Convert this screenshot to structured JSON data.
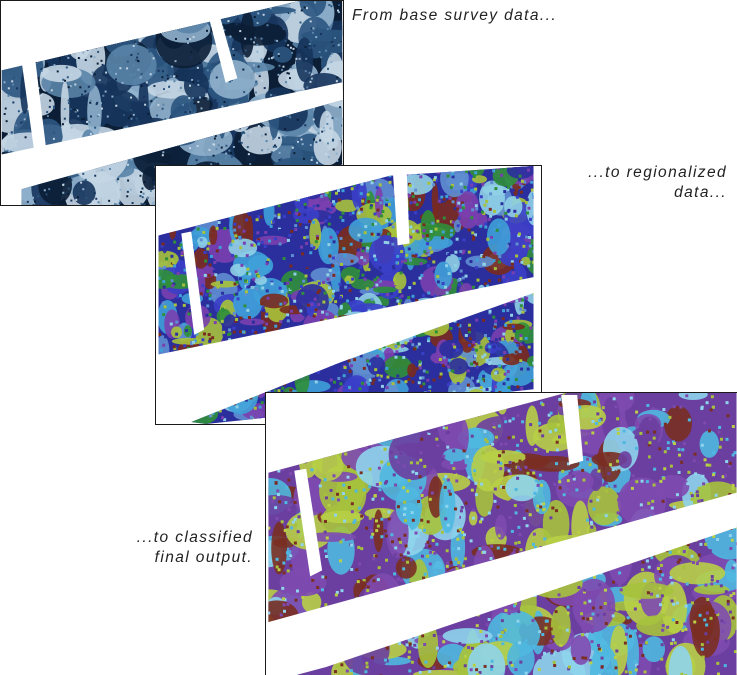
{
  "captions": {
    "survey": "From base survey data...",
    "regionalized_line1": "...to regionalized",
    "regionalized_line2": "data...",
    "classified_line1": "...to classified",
    "classified_line2": "final output."
  },
  "palettes": {
    "survey": [
      "#0b1e36",
      "#16345c",
      "#2b557f",
      "#5a84a8",
      "#8fb0cc",
      "#c4d6e4"
    ],
    "regionalized": [
      "#2b2f9e",
      "#3a3fc8",
      "#7a3fae",
      "#2f8f3a",
      "#3fa0d8",
      "#8fd0e6",
      "#a7c23a",
      "#7a2a1e",
      "#5f8fd0"
    ],
    "classified": [
      "#6b3fa0",
      "#7e4ab0",
      "#a6c23c",
      "#b8cf46",
      "#4fb8e0",
      "#8ed4ec",
      "#7a2f22"
    ]
  }
}
